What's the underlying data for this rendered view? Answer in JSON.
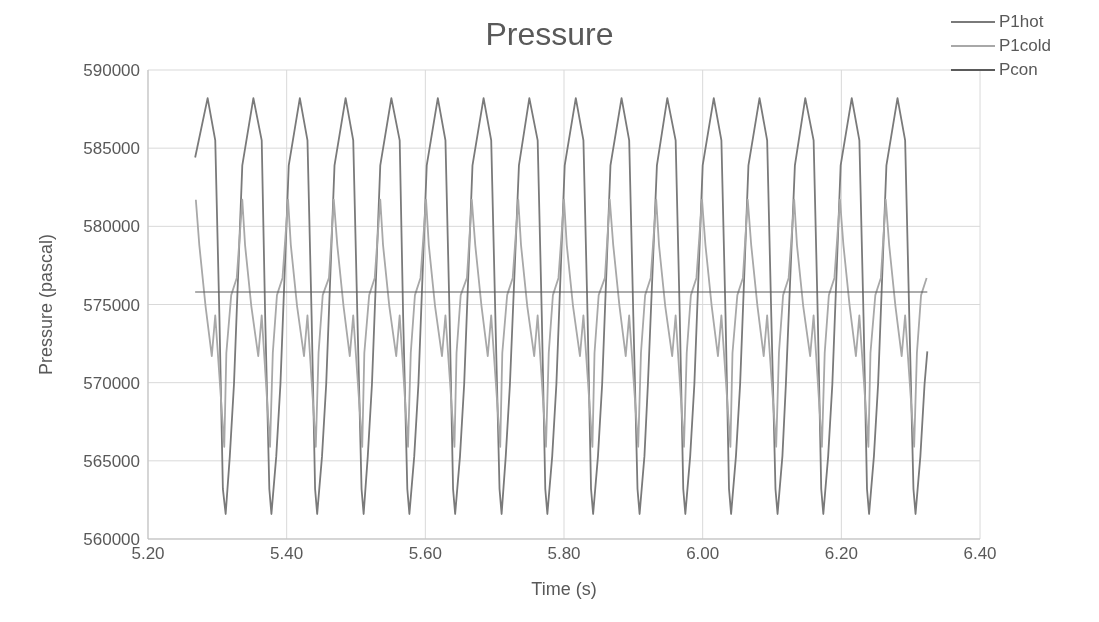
{
  "chart_data": {
    "type": "line",
    "title": "Pressure",
    "xlabel": "Time (s)",
    "ylabel": "Pressure (pascal)",
    "xlim": [
      5.2,
      6.4
    ],
    "xticks": [
      {
        "value": 5.2,
        "label": "5.20"
      },
      {
        "value": 5.4,
        "label": "5.40"
      },
      {
        "value": 5.6,
        "label": "5.60"
      },
      {
        "value": 5.8,
        "label": "5.80"
      },
      {
        "value": 6.0,
        "label": "6.00"
      },
      {
        "value": 6.2,
        "label": "6.20"
      },
      {
        "value": 6.4,
        "label": "6.40"
      }
    ],
    "ylim": [
      560000,
      590000
    ],
    "yticks": [
      560000,
      565000,
      570000,
      575000,
      580000,
      585000,
      590000
    ],
    "grid": true,
    "legend": "top right",
    "marker": "none",
    "line_style": "solid",
    "series": [
      {
        "name": "P1hot",
        "color": "#7a7a7a",
        "x": [
          5.268,
          5.286,
          5.297,
          5.303,
          5.308,
          5.312,
          5.318,
          5.324,
          5.336,
          5.352,
          5.364,
          5.369,
          5.375,
          5.378,
          5.385,
          5.391,
          5.403,
          5.419,
          5.43,
          5.436,
          5.441,
          5.444,
          5.451,
          5.457,
          5.469,
          5.485,
          5.496,
          5.502,
          5.508,
          5.511,
          5.517,
          5.523,
          5.535,
          5.551,
          5.563,
          5.568,
          5.574,
          5.577,
          5.584,
          5.59,
          5.602,
          5.618,
          5.629,
          5.635,
          5.64,
          5.643,
          5.65,
          5.656,
          5.668,
          5.684,
          5.695,
          5.701,
          5.707,
          5.71,
          5.716,
          5.722,
          5.735,
          5.75,
          5.762,
          5.768,
          5.773,
          5.776,
          5.783,
          5.789,
          5.801,
          5.817,
          5.828,
          5.834,
          5.839,
          5.842,
          5.849,
          5.855,
          5.867,
          5.883,
          5.894,
          5.9,
          5.906,
          5.909,
          5.916,
          5.921,
          5.934,
          5.949,
          5.961,
          5.967,
          5.972,
          5.975,
          5.982,
          5.988,
          6.0,
          6.016,
          6.027,
          6.033,
          6.038,
          6.041,
          6.048,
          6.054,
          6.066,
          6.082,
          6.093,
          6.099,
          6.105,
          6.108,
          6.115,
          6.12,
          6.133,
          6.148,
          6.16,
          6.166,
          6.171,
          6.174,
          6.181,
          6.187,
          6.199,
          6.215,
          6.226,
          6.232,
          6.237,
          6.24,
          6.247,
          6.253,
          6.265,
          6.281,
          6.292,
          6.298,
          6.304,
          6.307,
          6.314,
          6.32,
          6.324
        ],
        "values": [
          584400,
          588200,
          585500,
          574200,
          563200,
          561600,
          565300,
          569900,
          583900,
          588200,
          585500,
          574200,
          563200,
          561600,
          565300,
          569900,
          583900,
          588200,
          585500,
          574200,
          563200,
          561600,
          565300,
          569900,
          583900,
          588200,
          585500,
          574200,
          563200,
          561600,
          565300,
          569900,
          583900,
          588200,
          585500,
          574200,
          563200,
          561600,
          565300,
          569900,
          583900,
          588200,
          585500,
          574200,
          563200,
          561600,
          565300,
          569900,
          583900,
          588200,
          585500,
          574200,
          563200,
          561600,
          565300,
          569900,
          583900,
          588200,
          585500,
          574200,
          563200,
          561600,
          565300,
          569900,
          583900,
          588200,
          585500,
          574200,
          563200,
          561600,
          565300,
          569900,
          583900,
          588200,
          585500,
          574200,
          563200,
          561600,
          565300,
          569900,
          583900,
          588200,
          585500,
          574200,
          563200,
          561600,
          565300,
          569900,
          583900,
          588200,
          585500,
          574200,
          563200,
          561600,
          565300,
          569900,
          583900,
          588200,
          585500,
          574200,
          563200,
          561600,
          565300,
          569900,
          583900,
          588200,
          585500,
          574200,
          563200,
          561600,
          565300,
          569900,
          583900,
          588200,
          585500,
          574200,
          563200,
          561600,
          565300,
          569900,
          583900,
          588200,
          585500,
          574200,
          563200,
          561600,
          565300,
          569900,
          572000
        ]
      },
      {
        "name": "P1cold",
        "color": "#a8a8a8",
        "x": [
          5.269,
          5.274,
          5.283,
          5.292,
          5.297,
          5.31,
          5.313,
          5.32,
          5.328,
          5.336,
          5.34,
          5.349,
          5.359,
          5.364,
          5.376,
          5.38,
          5.386,
          5.394,
          5.402,
          5.406,
          5.415,
          5.425,
          5.43,
          5.442,
          5.446,
          5.452,
          5.461,
          5.468,
          5.473,
          5.482,
          5.491,
          5.496,
          5.509,
          5.512,
          5.519,
          5.527,
          5.535,
          5.539,
          5.548,
          5.558,
          5.563,
          5.575,
          5.579,
          5.585,
          5.593,
          5.601,
          5.605,
          5.614,
          5.624,
          5.629,
          5.642,
          5.645,
          5.651,
          5.66,
          5.667,
          5.672,
          5.681,
          5.69,
          5.695,
          5.708,
          5.711,
          5.718,
          5.726,
          5.734,
          5.738,
          5.747,
          5.757,
          5.762,
          5.774,
          5.778,
          5.784,
          5.792,
          5.8,
          5.804,
          5.813,
          5.823,
          5.828,
          5.841,
          5.844,
          5.85,
          5.859,
          5.866,
          5.871,
          5.88,
          5.889,
          5.894,
          5.907,
          5.911,
          5.917,
          5.925,
          5.933,
          5.937,
          5.946,
          5.956,
          5.961,
          5.973,
          5.977,
          5.983,
          5.991,
          5.999,
          6.004,
          6.013,
          6.022,
          6.027,
          6.04,
          6.043,
          6.05,
          6.058,
          6.065,
          6.07,
          6.079,
          6.088,
          6.093,
          6.106,
          6.11,
          6.116,
          6.124,
          6.132,
          6.136,
          6.145,
          6.155,
          6.16,
          6.172,
          6.176,
          6.182,
          6.19,
          6.198,
          6.203,
          6.212,
          6.221,
          6.226,
          6.239,
          6.242,
          6.249,
          6.257,
          6.264,
          6.269,
          6.278,
          6.287,
          6.292,
          6.305,
          6.309,
          6.315,
          6.323
        ],
        "values": [
          581700,
          578800,
          574900,
          571700,
          574300,
          565900,
          571900,
          575600,
          576700,
          581700,
          578800,
          574900,
          571700,
          574300,
          565900,
          571900,
          575600,
          576700,
          581700,
          578800,
          574900,
          571700,
          574300,
          565900,
          571900,
          575600,
          576700,
          581700,
          578800,
          574900,
          571700,
          574300,
          565900,
          571900,
          575600,
          576700,
          581700,
          578800,
          574900,
          571700,
          574300,
          565900,
          571900,
          575600,
          576700,
          581700,
          578800,
          574900,
          571700,
          574300,
          565900,
          571900,
          575600,
          576700,
          581700,
          578800,
          574900,
          571700,
          574300,
          565900,
          571900,
          575600,
          576700,
          581700,
          578800,
          574900,
          571700,
          574300,
          565900,
          571900,
          575600,
          576700,
          581700,
          578800,
          574900,
          571700,
          574300,
          565900,
          571900,
          575600,
          576700,
          581700,
          578800,
          574900,
          571700,
          574300,
          565900,
          571900,
          575600,
          576700,
          581700,
          578800,
          574900,
          571700,
          574300,
          565900,
          571900,
          575600,
          576700,
          581700,
          578800,
          574900,
          571700,
          574300,
          565900,
          571900,
          575600,
          576700,
          581700,
          578800,
          574900,
          571700,
          574300,
          565900,
          571900,
          575600,
          576700,
          581700,
          578800,
          574900,
          571700,
          574300,
          565900,
          571900,
          575600,
          576700,
          581700,
          578800,
          574900,
          571700,
          574300,
          565900,
          571900,
          575600,
          576700,
          581700,
          578800,
          574900,
          571700,
          574300,
          565900,
          571900,
          575600,
          576700
        ]
      },
      {
        "name": "Pcon",
        "color": "#5a5a5a",
        "x": [
          5.268,
          6.324
        ],
        "values": [
          575800,
          575800
        ]
      }
    ]
  }
}
